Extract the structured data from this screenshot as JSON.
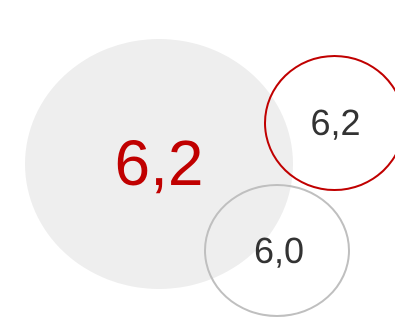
{
  "bubbles": {
    "main": {
      "value": "6,2",
      "fill": "#eeeeee",
      "text_color": "#c00000"
    },
    "top_right": {
      "value": "6,2",
      "border_color": "#c00000",
      "text_color": "#333333"
    },
    "bottom": {
      "value": "6,0",
      "border_color": "#bfbfbf",
      "text_color": "#333333"
    }
  }
}
